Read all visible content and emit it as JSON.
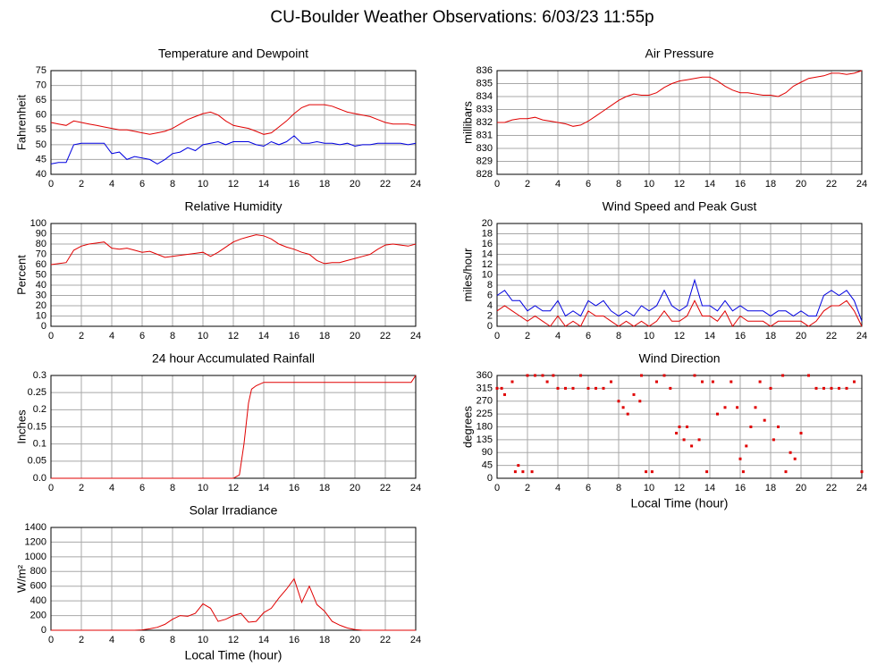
{
  "title": "CU-Boulder Weather Observations: 6/03/23 11:55p",
  "chart_data": [
    {
      "type": "line",
      "title": "Temperature and Dewpoint",
      "y_label": "Fahrenheit",
      "x": [
        0,
        0.5,
        1,
        1.5,
        2,
        2.5,
        3,
        3.5,
        4,
        4.5,
        5,
        5.5,
        6,
        6.5,
        7,
        7.5,
        8,
        8.5,
        9,
        9.5,
        10,
        10.5,
        11,
        11.5,
        12,
        12.5,
        13,
        13.5,
        14,
        14.5,
        15,
        15.5,
        16,
        16.5,
        17,
        17.5,
        18,
        18.5,
        19,
        19.5,
        20,
        20.5,
        21,
        21.5,
        22,
        22.5,
        23,
        23.5,
        24
      ],
      "series": [
        {
          "color": "#e00000",
          "values": [
            57.5,
            57,
            56.5,
            58,
            57.5,
            57,
            56.5,
            56,
            55.5,
            55,
            55,
            54.5,
            54,
            53.5,
            54,
            54.5,
            55.5,
            57,
            58.5,
            59.5,
            60.5,
            61,
            60,
            58,
            56.5,
            56,
            55.5,
            54.5,
            53.5,
            54,
            56,
            58,
            60.5,
            62.5,
            63.5,
            63.5,
            63.5,
            63,
            62,
            61,
            60.5,
            60,
            59.5,
            58.5,
            57.5,
            57,
            57,
            57,
            56.5
          ]
        },
        {
          "color": "#0000e0",
          "values": [
            43.5,
            44,
            44,
            50,
            50.5,
            50.5,
            50.5,
            50.5,
            47,
            47.5,
            45,
            46,
            45.5,
            45,
            43.5,
            45,
            47,
            47.5,
            49,
            48,
            50,
            50.5,
            51,
            50,
            51,
            51,
            51,
            50,
            49.5,
            51,
            50,
            51,
            53,
            50.5,
            50.5,
            51,
            50.5,
            50.5,
            50,
            50.5,
            49.5,
            50,
            50,
            50.5,
            50.5,
            50.5,
            50.5,
            50,
            50.5
          ]
        }
      ],
      "xlim": [
        0,
        24
      ],
      "xticks": [
        0,
        2,
        4,
        6,
        8,
        10,
        12,
        14,
        16,
        18,
        20,
        22,
        24
      ],
      "ylim": [
        40,
        75
      ],
      "yticks": [
        40,
        45,
        50,
        55,
        60,
        65,
        70,
        75
      ],
      "grid": true
    },
    {
      "type": "line",
      "title": "Air Pressure",
      "y_label": "millibars",
      "x": [
        0,
        0.5,
        1,
        1.5,
        2,
        2.5,
        3,
        3.5,
        4,
        4.5,
        5,
        5.5,
        6,
        6.5,
        7,
        7.5,
        8,
        8.5,
        9,
        9.5,
        10,
        10.5,
        11,
        11.5,
        12,
        12.5,
        13,
        13.5,
        14,
        14.5,
        15,
        15.5,
        16,
        16.5,
        17,
        17.5,
        18,
        18.5,
        19,
        19.5,
        20,
        20.5,
        21,
        21.5,
        22,
        22.5,
        23,
        23.5,
        24
      ],
      "series": [
        {
          "color": "#e00000",
          "values": [
            832,
            832,
            832.2,
            832.3,
            832.3,
            832.4,
            832.2,
            832.1,
            832,
            831.9,
            831.7,
            831.8,
            832.1,
            832.5,
            832.9,
            833.3,
            833.7,
            834,
            834.2,
            834.1,
            834.1,
            834.3,
            834.7,
            835,
            835.2,
            835.3,
            835.4,
            835.5,
            835.5,
            835.2,
            834.8,
            834.5,
            834.3,
            834.3,
            834.2,
            834.1,
            834.1,
            834,
            834.3,
            834.8,
            835.1,
            835.4,
            835.5,
            835.6,
            835.8,
            835.8,
            835.7,
            835.8,
            836
          ]
        }
      ],
      "xlim": [
        0,
        24
      ],
      "xticks": [
        0,
        2,
        4,
        6,
        8,
        10,
        12,
        14,
        16,
        18,
        20,
        22,
        24
      ],
      "ylim": [
        828,
        836
      ],
      "yticks": [
        828,
        829,
        830,
        831,
        832,
        833,
        834,
        835,
        836
      ],
      "grid": true
    },
    {
      "type": "line",
      "title": "Relative Humidity",
      "y_label": "Percent",
      "x": [
        0,
        0.5,
        1,
        1.5,
        2,
        2.5,
        3,
        3.5,
        4,
        4.5,
        5,
        5.5,
        6,
        6.5,
        7,
        7.5,
        8,
        8.5,
        9,
        9.5,
        10,
        10.5,
        11,
        11.5,
        12,
        12.5,
        13,
        13.5,
        14,
        14.5,
        15,
        15.5,
        16,
        16.5,
        17,
        17.5,
        18,
        18.5,
        19,
        19.5,
        20,
        20.5,
        21,
        21.5,
        22,
        22.5,
        23,
        23.5,
        24
      ],
      "series": [
        {
          "color": "#e00000",
          "values": [
            60,
            61,
            62,
            74,
            78,
            80,
            81,
            82,
            76,
            75,
            76,
            74,
            72,
            73,
            70,
            67,
            68,
            69,
            70,
            71,
            72,
            68,
            72,
            77,
            82,
            85,
            87,
            89,
            88,
            85,
            80,
            77,
            75,
            72,
            70,
            64,
            61,
            62,
            62,
            64,
            66,
            68,
            70,
            75,
            79,
            80,
            79,
            78,
            80
          ]
        }
      ],
      "xlim": [
        0,
        24
      ],
      "xticks": [
        0,
        2,
        4,
        6,
        8,
        10,
        12,
        14,
        16,
        18,
        20,
        22,
        24
      ],
      "ylim": [
        0,
        100
      ],
      "yticks": [
        0,
        10,
        20,
        30,
        40,
        50,
        60,
        70,
        80,
        90,
        100
      ],
      "grid": true
    },
    {
      "type": "line",
      "title": "Wind Speed and Peak Gust",
      "y_label": "miles/hour",
      "x": [
        0,
        0.5,
        1,
        1.5,
        2,
        2.5,
        3,
        3.5,
        4,
        4.5,
        5,
        5.5,
        6,
        6.5,
        7,
        7.5,
        8,
        8.5,
        9,
        9.5,
        10,
        10.5,
        11,
        11.5,
        12,
        12.5,
        13,
        13.5,
        14,
        14.5,
        15,
        15.5,
        16,
        16.5,
        17,
        17.5,
        18,
        18.5,
        19,
        19.5,
        20,
        20.5,
        21,
        21.5,
        22,
        22.5,
        23,
        23.5,
        24
      ],
      "series": [
        {
          "color": "#0000e0",
          "values": [
            6,
            7,
            5,
            5,
            3,
            4,
            3,
            3,
            5,
            2,
            3,
            2,
            5,
            4,
            5,
            3,
            2,
            3,
            2,
            4,
            3,
            4,
            7,
            4,
            3,
            4,
            9,
            4,
            4,
            3,
            5,
            3,
            4,
            3,
            3,
            3,
            2,
            3,
            3,
            2,
            3,
            2,
            2,
            6,
            7,
            6,
            7,
            5,
            1
          ]
        },
        {
          "color": "#e00000",
          "values": [
            3,
            4,
            3,
            2,
            1,
            2,
            1,
            0,
            2,
            0,
            1,
            0,
            3,
            2,
            2,
            1,
            0,
            1,
            0,
            1,
            0,
            1,
            3,
            1,
            1,
            2,
            5,
            2,
            2,
            1,
            3,
            0,
            2,
            1,
            1,
            1,
            0,
            1,
            1,
            1,
            1,
            0,
            1,
            3,
            4,
            4,
            5,
            3,
            0
          ]
        }
      ],
      "xlim": [
        0,
        24
      ],
      "xticks": [
        0,
        2,
        4,
        6,
        8,
        10,
        12,
        14,
        16,
        18,
        20,
        22,
        24
      ],
      "ylim": [
        0,
        20
      ],
      "yticks": [
        0,
        2,
        4,
        6,
        8,
        10,
        12,
        14,
        16,
        18,
        20
      ],
      "grid": true
    },
    {
      "type": "line",
      "title": "24 hour Accumulated Rainfall",
      "y_label": "Inches",
      "x": [
        0,
        12,
        12.4,
        12.7,
        13,
        13.2,
        13.5,
        14,
        23.7,
        24
      ],
      "series": [
        {
          "color": "#e00000",
          "values": [
            0,
            0,
            0.01,
            0.1,
            0.22,
            0.26,
            0.27,
            0.28,
            0.28,
            0.3
          ]
        }
      ],
      "xlim": [
        0,
        24
      ],
      "xticks": [
        0,
        2,
        4,
        6,
        8,
        10,
        12,
        14,
        16,
        18,
        20,
        22,
        24
      ],
      "ylim": [
        0,
        0.3
      ],
      "yticks": [
        {
          "value": 0,
          "label": "0.0"
        },
        0.05,
        0.1,
        0.15,
        0.2,
        0.25,
        0.3
      ],
      "grid": true
    },
    {
      "type": "scatter",
      "title": "Wind Direction",
      "y_label": "degrees",
      "x_label": "Local Time (hour)",
      "x": [
        0,
        0.3,
        0.5,
        1,
        1.2,
        1.4,
        1.7,
        2,
        2.3,
        2.5,
        3,
        3.3,
        3.7,
        4,
        4.5,
        5,
        5.5,
        6,
        6.5,
        7,
        7.5,
        8,
        8.3,
        8.6,
        9,
        9.4,
        9.5,
        9.8,
        10.2,
        10.5,
        11,
        11.4,
        11.8,
        12,
        12.3,
        12.5,
        12.8,
        13,
        13.3,
        13.5,
        13.8,
        14.2,
        14.5,
        15,
        15.4,
        15.8,
        16,
        16.2,
        16.4,
        16.7,
        17,
        17.3,
        17.6,
        18,
        18.2,
        18.5,
        18.8,
        19,
        19.3,
        19.6,
        20,
        20.5,
        21,
        21.5,
        22,
        22.5,
        23,
        23.5,
        24
      ],
      "series": [
        {
          "color": "#e00000",
          "values": [
            315,
            315,
            293,
            338,
            23,
            45,
            23,
            360,
            23,
            360,
            360,
            338,
            360,
            315,
            315,
            315,
            360,
            315,
            315,
            315,
            338,
            270,
            248,
            225,
            293,
            270,
            360,
            23,
            23,
            338,
            360,
            315,
            158,
            180,
            135,
            180,
            113,
            360,
            135,
            338,
            23,
            338,
            225,
            248,
            338,
            248,
            68,
            23,
            113,
            180,
            248,
            338,
            203,
            315,
            135,
            180,
            360,
            23,
            90,
            68,
            158,
            360,
            315,
            315,
            315,
            315,
            315,
            338,
            23
          ]
        }
      ],
      "xlim": [
        0,
        24
      ],
      "xticks": [
        0,
        2,
        4,
        6,
        8,
        10,
        12,
        14,
        16,
        18,
        20,
        22,
        24
      ],
      "ylim": [
        0,
        360
      ],
      "yticks": [
        0,
        45,
        90,
        135,
        180,
        225,
        270,
        315,
        360
      ],
      "grid": true
    },
    {
      "type": "line",
      "title": "Solar Irradiance",
      "y_label": "W/m²",
      "x_label": "Local Time (hour)",
      "x": [
        0,
        0.5,
        1,
        1.5,
        2,
        2.5,
        3,
        3.5,
        4,
        4.5,
        5,
        5.5,
        6,
        6.5,
        7,
        7.5,
        8,
        8.5,
        9,
        9.5,
        10,
        10.5,
        11,
        11.5,
        12,
        12.5,
        13,
        13.5,
        14,
        14.5,
        15,
        15.5,
        16,
        16.5,
        17,
        17.5,
        18,
        18.5,
        19,
        19.5,
        20,
        20.5,
        21,
        21.5,
        22,
        22.5,
        23,
        23.5,
        24
      ],
      "series": [
        {
          "color": "#e00000",
          "values": [
            0,
            0,
            0,
            0,
            0,
            0,
            0,
            0,
            0,
            0,
            0,
            0,
            5,
            20,
            40,
            80,
            150,
            200,
            190,
            230,
            360,
            300,
            120,
            150,
            200,
            230,
            110,
            120,
            240,
            300,
            440,
            560,
            700,
            380,
            600,
            350,
            260,
            120,
            70,
            30,
            10,
            0,
            0,
            0,
            0,
            0,
            0,
            0,
            0
          ]
        }
      ],
      "xlim": [
        0,
        24
      ],
      "xticks": [
        0,
        2,
        4,
        6,
        8,
        10,
        12,
        14,
        16,
        18,
        20,
        22,
        24
      ],
      "ylim": [
        0,
        1400
      ],
      "yticks": [
        0,
        200,
        400,
        600,
        800,
        1000,
        1200,
        1400
      ],
      "grid": true
    }
  ]
}
